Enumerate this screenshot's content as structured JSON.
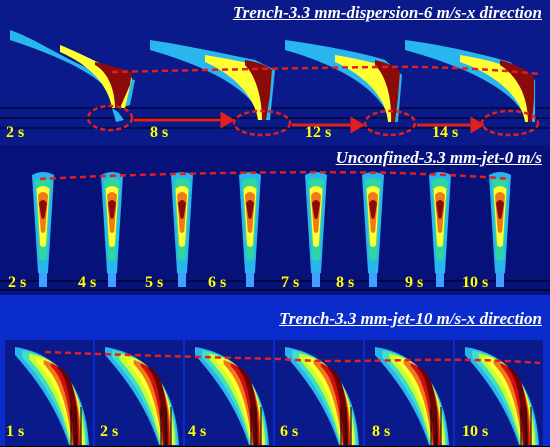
{
  "panels": [
    {
      "title": "Trench-3.3 mm-dispersion-6 m/s-x direction",
      "labels": [
        "2 s",
        "8 s",
        "12 s",
        "14 s"
      ]
    },
    {
      "title": "Unconfined-3.3 mm-jet-0 m/s",
      "labels": [
        "2 s",
        "4 s",
        "5 s",
        "6 s",
        "7 s",
        "8 s",
        "9 s",
        "10 s"
      ]
    },
    {
      "title": "Trench-3.3 mm-jet-10 m/s-x direction",
      "labels": [
        "1 s",
        "2 s",
        "4 s",
        "6 s",
        "8 s",
        "10 s"
      ]
    }
  ],
  "colors": {
    "label": "#ffff00",
    "title": "#ffffff",
    "dashed_line": "#e02020",
    "arrow": "#e02020"
  }
}
